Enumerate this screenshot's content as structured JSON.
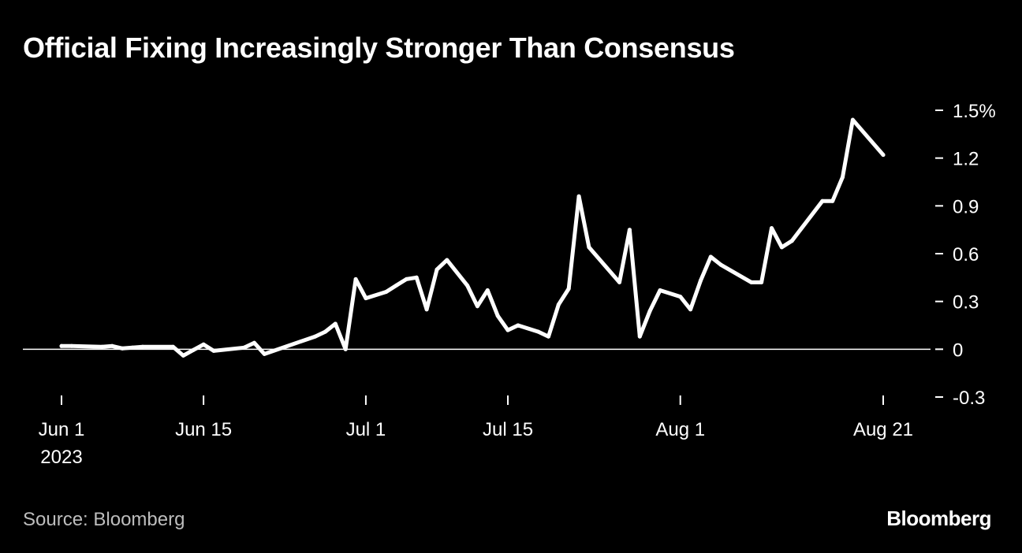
{
  "title": "Official Fixing Increasingly Stronger Than Consensus",
  "source": "Source: Bloomberg",
  "brand": "Bloomberg",
  "chart_data": {
    "type": "line",
    "title": "Official Fixing Increasingly Stronger Than Consensus",
    "xlabel": "",
    "ylabel": "",
    "y_unit": "%",
    "ylim": [
      -0.3,
      1.5
    ],
    "y_ticks": [
      {
        "value": 1.5,
        "label": "1.5%"
      },
      {
        "value": 1.2,
        "label": "1.2"
      },
      {
        "value": 0.9,
        "label": "0.9"
      },
      {
        "value": 0.6,
        "label": "0.6"
      },
      {
        "value": 0.3,
        "label": "0.3"
      },
      {
        "value": 0,
        "label": "0"
      },
      {
        "value": -0.3,
        "label": "-0.3"
      }
    ],
    "xlim": [
      "2023-06-01",
      "2023-08-21"
    ],
    "x_ticks": [
      {
        "date": "2023-06-01",
        "label": "Jun 1",
        "sublabel": "2023"
      },
      {
        "date": "2023-06-15",
        "label": "Jun 15"
      },
      {
        "date": "2023-07-01",
        "label": "Jul 1"
      },
      {
        "date": "2023-07-15",
        "label": "Jul 15"
      },
      {
        "date": "2023-08-01",
        "label": "Aug 1"
      },
      {
        "date": "2023-08-21",
        "label": "Aug 21"
      }
    ],
    "zero_line": true,
    "colors": {
      "background": "#000000",
      "line": "#ffffff"
    },
    "series": [
      {
        "values": [
          [
            "2023-06-01",
            0.02
          ],
          [
            "2023-06-02",
            0.02
          ],
          [
            "2023-06-05",
            0.015
          ],
          [
            "2023-06-06",
            0.02
          ],
          [
            "2023-06-07",
            0.005
          ],
          [
            "2023-06-08",
            0.01
          ],
          [
            "2023-06-09",
            0.015
          ],
          [
            "2023-06-12",
            0.015
          ],
          [
            "2023-06-13",
            -0.04
          ],
          [
            "2023-06-14",
            -0.005
          ],
          [
            "2023-06-15",
            0.03
          ],
          [
            "2023-06-16",
            -0.01
          ],
          [
            "2023-06-19",
            0.01
          ],
          [
            "2023-06-20",
            0.04
          ],
          [
            "2023-06-21",
            -0.03
          ],
          [
            "2023-06-26",
            0.08
          ],
          [
            "2023-06-27",
            0.11
          ],
          [
            "2023-06-28",
            0.16
          ],
          [
            "2023-06-29",
            0.0
          ],
          [
            "2023-06-30",
            0.44
          ],
          [
            "2023-07-01",
            0.32
          ],
          [
            "2023-07-03",
            0.36
          ],
          [
            "2023-07-04",
            0.4
          ],
          [
            "2023-07-05",
            0.44
          ],
          [
            "2023-07-06",
            0.45
          ],
          [
            "2023-07-07",
            0.25
          ],
          [
            "2023-07-08",
            0.5
          ],
          [
            "2023-07-09",
            0.56
          ],
          [
            "2023-07-11",
            0.4
          ],
          [
            "2023-07-12",
            0.27
          ],
          [
            "2023-07-13",
            0.37
          ],
          [
            "2023-07-14",
            0.21
          ],
          [
            "2023-07-15",
            0.12
          ],
          [
            "2023-07-16",
            0.15
          ],
          [
            "2023-07-18",
            0.11
          ],
          [
            "2023-07-19",
            0.08
          ],
          [
            "2023-07-20",
            0.28
          ],
          [
            "2023-07-21",
            0.38
          ],
          [
            "2023-07-22",
            0.96
          ],
          [
            "2023-07-23",
            0.64
          ],
          [
            "2023-07-26",
            0.42
          ],
          [
            "2023-07-27",
            0.75
          ],
          [
            "2023-07-28",
            0.08
          ],
          [
            "2023-07-29",
            0.24
          ],
          [
            "2023-07-30",
            0.37
          ],
          [
            "2023-08-01",
            0.33
          ],
          [
            "2023-08-02",
            0.25
          ],
          [
            "2023-08-03",
            0.43
          ],
          [
            "2023-08-04",
            0.58
          ],
          [
            "2023-08-05",
            0.53
          ],
          [
            "2023-08-08",
            0.42
          ],
          [
            "2023-08-09",
            0.42
          ],
          [
            "2023-08-10",
            0.76
          ],
          [
            "2023-08-11",
            0.64
          ],
          [
            "2023-08-12",
            0.68
          ],
          [
            "2023-08-15",
            0.93
          ],
          [
            "2023-08-16",
            0.93
          ],
          [
            "2023-08-17",
            1.08
          ],
          [
            "2023-08-18",
            1.44
          ],
          [
            "2023-08-21",
            1.22
          ]
        ]
      }
    ]
  }
}
